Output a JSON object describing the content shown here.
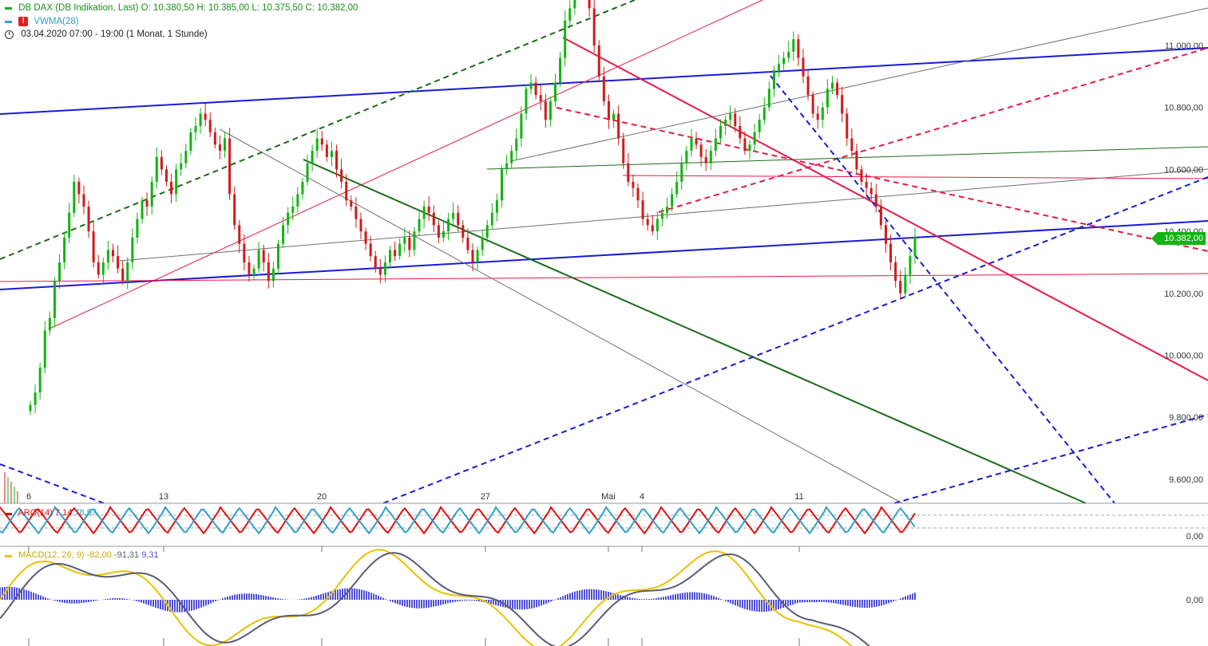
{
  "legend": {
    "instrument": "DB DAX (DB Indikation, Last)",
    "open": "O: 10.380,50",
    "high": "H: 10.385,00",
    "low": "L: 10.375,50",
    "close": "C: 10.382,00",
    "indicator": "VWMA(28)",
    "period": "03.04.2020 07:00 - 19:00",
    "resolution": "(1 Monat, 1 Stunde)"
  },
  "price_tag": "10.382,00",
  "aro_legend": {
    "name": "ARO(14)",
    "v1": "7,14",
    "v2": "78,57"
  },
  "macd_legend": {
    "name": "MACD(12, 26, 9)",
    "v1": "-82,00",
    "v2": "-91,31",
    "v3": "9,31"
  },
  "colors": {
    "up": "#11b511",
    "down": "#d11a1a",
    "blue": "#1a1ad6",
    "red_line": "#e8194a",
    "dark_green": "#1b6b1b",
    "gray": "#707070",
    "aro_up": "#e01010",
    "aro_down": "#2fa0c8",
    "macd_line": "#5a5a78",
    "macd_signal": "#e8c200",
    "macd_hist": "#4f4fd8"
  },
  "chart_data": {
    "type": "candlestick",
    "y_ticks": [
      "11.000,00",
      "10.800,00",
      "10.600,00",
      "10.400,00",
      "10.200,00",
      "10.000,00",
      "9.800,00",
      "9.600,00"
    ],
    "y_tick_values": [
      11000,
      10800,
      10600,
      10400,
      10200,
      10000,
      9800,
      9600
    ],
    "x_ticks": [
      "6",
      "13",
      "20",
      "27",
      "Mai",
      "4",
      "11"
    ],
    "aro_ticks": [
      "0,00"
    ],
    "macd_ticks": [
      "0,00"
    ],
    "price_close": [
      9840,
      9880,
      9960,
      10080,
      10120,
      10240,
      10300,
      10380,
      10460,
      10560,
      10520,
      10480,
      10400,
      10300,
      10260,
      10300,
      10340,
      10320,
      10280,
      10240,
      10300,
      10380,
      10440,
      10500,
      10480,
      10560,
      10640,
      10600,
      10560,
      10520,
      10600,
      10620,
      10660,
      10720,
      10740,
      10780,
      10760,
      10720,
      10680,
      10660,
      10700,
      10520,
      10420,
      10360,
      10300,
      10260,
      10280,
      10340,
      10300,
      10240,
      10280,
      10360,
      10420,
      10460,
      10480,
      10520,
      10560,
      10620,
      10660,
      10700,
      10680,
      10640,
      10660,
      10600,
      10560,
      10500,
      10480,
      10440,
      10400,
      10360,
      10320,
      10280,
      10260,
      10300,
      10340,
      10320,
      10360,
      10380,
      10340,
      10400,
      10440,
      10480,
      10460,
      10420,
      10380,
      10400,
      10440,
      10460,
      10420,
      10380,
      10340,
      10300,
      10340,
      10380,
      10420,
      10460,
      10500,
      10600,
      10620,
      10660,
      10700,
      10780,
      10860,
      10880,
      10840,
      10820,
      10760,
      10820,
      10880,
      10960,
      11080,
      11120,
      11180,
      11220,
      11200,
      11120,
      11000,
      10900,
      10820,
      10760,
      10780,
      10700,
      10620,
      10560,
      10540,
      10500,
      10440,
      10420,
      10400,
      10440,
      10460,
      10480,
      10520,
      10560,
      10620,
      10660,
      10700,
      10680,
      10640,
      10620,
      10660,
      10700,
      10740,
      10760,
      10780,
      10740,
      10700,
      10660,
      10680,
      10720,
      10760,
      10800,
      10860,
      10920,
      10940,
      10960,
      10980,
      11020,
      10960,
      10900,
      10840,
      10780,
      10760,
      10800,
      10860,
      10880,
      10840,
      10780,
      10700,
      10660,
      10600,
      10560,
      10540,
      10520,
      10480,
      10420,
      10360,
      10300,
      10240,
      10200,
      10260,
      10320,
      10382
    ],
    "ylim": [
      9520,
      11300
    ]
  }
}
